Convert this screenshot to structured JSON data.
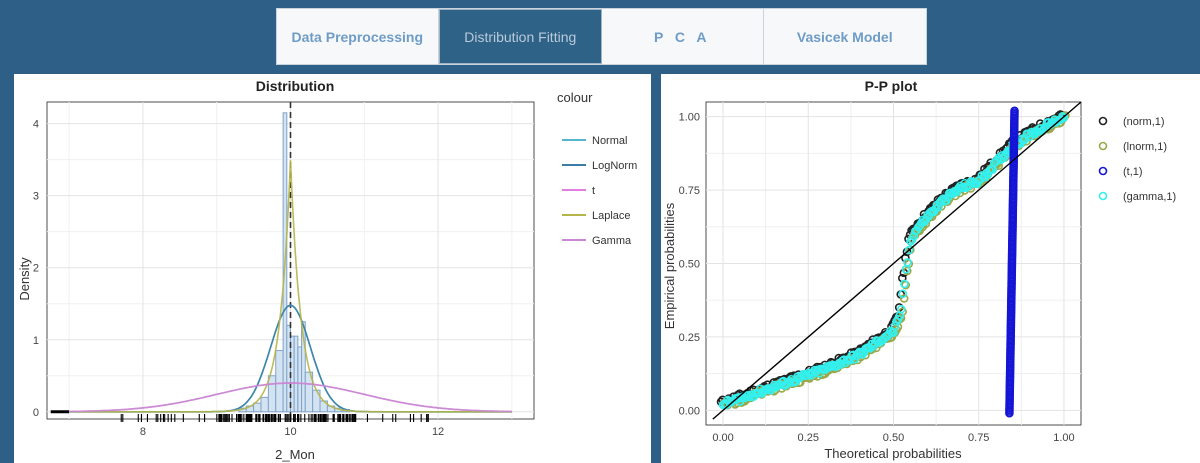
{
  "tabs": [
    {
      "label": "Data Preprocessing",
      "active": false
    },
    {
      "label": "Distribution Fitting",
      "active": true
    },
    {
      "label": "P C A",
      "active": false
    },
    {
      "label": "Vasicek Model",
      "active": false
    }
  ],
  "colors": {
    "normal": "#56b7cc",
    "lognorm": "#3b7da5",
    "t": "#e07fdf",
    "laplace": "#b5b54a",
    "gamma": "#c889d3",
    "hist_fill": "#d4e3f1",
    "hist_stroke": "#7ea3c9",
    "pp_norm": "#222222",
    "pp_lnorm": "#9aa84a",
    "pp_t": "#1515d6",
    "pp_gamma": "#33f0ee"
  },
  "chart_data": [
    {
      "type": "histogram-density",
      "title": "Distribution",
      "xlabel": "2_Mon",
      "ylabel": "Density",
      "xlim": [
        6.7,
        13.3
      ],
      "ylim": [
        -0.1,
        4.3
      ],
      "x_ticks": [
        8,
        10,
        12
      ],
      "y_ticks": [
        0,
        1,
        2,
        3,
        4
      ],
      "mean_line": 10,
      "histogram": {
        "bin_edges": [
          9.3,
          9.4,
          9.5,
          9.6,
          9.7,
          9.8,
          9.9,
          9.95,
          10.0,
          10.05,
          10.1,
          10.15,
          10.2,
          10.3,
          10.4,
          10.5,
          10.6,
          10.7,
          10.8
        ],
        "densities": [
          0.05,
          0.08,
          0.12,
          0.2,
          0.5,
          0.85,
          4.15,
          1.2,
          1.05,
          1.05,
          0.9,
          1.25,
          0.55,
          0.3,
          0.15,
          0.08,
          0.05,
          0.03
        ]
      },
      "legend_title": "colour",
      "series": [
        {
          "name": "Normal",
          "family": "normal",
          "mean": 10,
          "sd": 0.27
        },
        {
          "name": "LogNorm",
          "family": "normal",
          "mean": 10,
          "sd": 0.27
        },
        {
          "name": "t",
          "family": "normal",
          "mean": 10,
          "sd": 1.0
        },
        {
          "name": "Laplace",
          "family": "laplace",
          "mean": 10,
          "scale": 0.143
        },
        {
          "name": "Gamma",
          "family": "normal",
          "mean": 10,
          "sd": 1.0
        }
      ],
      "rug_range": [
        7.6,
        12.0
      ]
    },
    {
      "type": "scatter",
      "title": "P-P plot",
      "xlabel": "Theoretical probabilities",
      "ylabel": "Empirical probabilities",
      "xlim": [
        -0.05,
        1.05
      ],
      "ylim": [
        -0.05,
        1.05
      ],
      "x_ticks": [
        0.0,
        0.25,
        0.5,
        0.75,
        1.0
      ],
      "x_tick_labels": [
        "0.00",
        "0.25",
        "0.50",
        "0.75",
        "1.00"
      ],
      "y_ticks": [
        0.0,
        0.25,
        0.5,
        0.75,
        1.0
      ],
      "y_tick_labels": [
        "0.00",
        "0.25",
        "0.50",
        "0.75",
        "1.00"
      ],
      "reference_line": [
        [
          -0.03,
          -0.03
        ],
        [
          1.05,
          1.05
        ]
      ],
      "series": [
        {
          "name": "(norm,1)"
        },
        {
          "name": "(lnorm,1)"
        },
        {
          "name": "(t,1)",
          "x_range": [
            0.84,
            0.855
          ],
          "y_range": [
            -0.01,
            1.02
          ]
        },
        {
          "name": "(gamma,1)"
        }
      ],
      "s_curve": {
        "x": [
          0.0,
          0.05,
          0.1,
          0.2,
          0.3,
          0.4,
          0.45,
          0.5,
          0.52,
          0.53,
          0.54,
          0.55,
          0.57,
          0.6,
          0.65,
          0.7,
          0.75,
          0.8,
          0.85,
          0.9,
          0.95,
          1.0
        ],
        "y": [
          0.02,
          0.04,
          0.06,
          0.1,
          0.14,
          0.19,
          0.23,
          0.27,
          0.32,
          0.42,
          0.5,
          0.58,
          0.62,
          0.66,
          0.72,
          0.76,
          0.78,
          0.84,
          0.9,
          0.94,
          0.97,
          1.0
        ]
      }
    }
  ]
}
